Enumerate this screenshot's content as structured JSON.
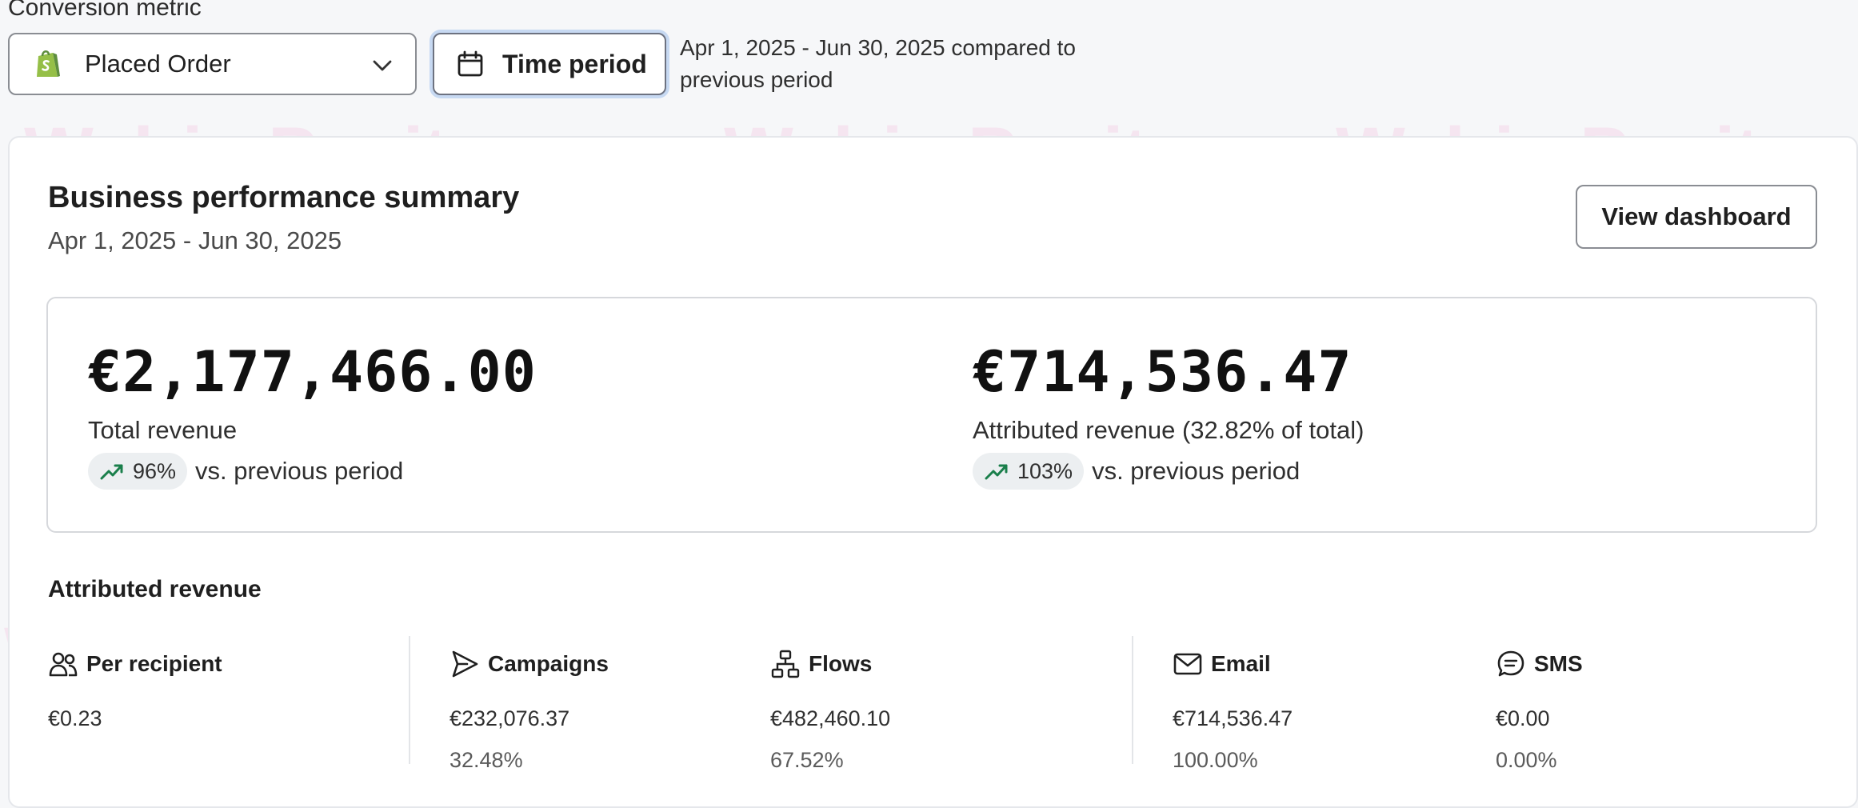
{
  "filters": {
    "conversion_metric_label": "Conversion metric",
    "conversion_metric_value": "Placed Order",
    "time_period_label": "Time period",
    "date_compare_line1": "Apr 1, 2025 - Jun 30, 2025 compared to",
    "date_compare_line2": "previous period"
  },
  "summary": {
    "title": "Business performance summary",
    "date_range": "Apr 1, 2025 - Jun 30, 2025",
    "view_button": "View dashboard"
  },
  "kpis": {
    "total": {
      "value": "€2,177,466.00",
      "label": "Total revenue",
      "delta": "96%",
      "vs_text": "vs. previous period"
    },
    "attributed": {
      "value": "€714,536.47",
      "label": "Attributed revenue (32.82% of total)",
      "delta": "103%",
      "vs_text": "vs. previous period"
    }
  },
  "attributed_revenue": {
    "title": "Attributed revenue",
    "metrics": [
      {
        "label": "Per recipient",
        "value": "€0.23",
        "icon": "people-icon"
      },
      {
        "label": "Campaigns",
        "value": "€232,076.37",
        "pct": "32.48%",
        "icon": "send-icon"
      },
      {
        "label": "Flows",
        "value": "€482,460.10",
        "pct": "67.52%",
        "icon": "flow-icon"
      },
      {
        "label": "Email",
        "value": "€714,536.47",
        "pct": "100.00%",
        "icon": "mail-icon"
      },
      {
        "label": "SMS",
        "value": "€0.00",
        "pct": "0.00%",
        "icon": "chat-icon"
      }
    ]
  },
  "watermark": {
    "text": "Welrin Pepito"
  },
  "colors": {
    "trend_up": "#1a7f4b",
    "shopify_green": "#95bf47",
    "focus_ring": "#c7d9f2"
  }
}
